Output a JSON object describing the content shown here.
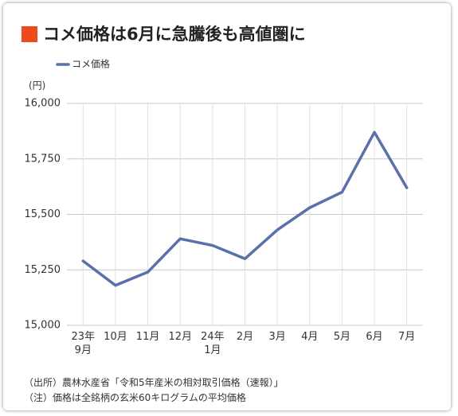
{
  "chart_data": {
    "type": "line",
    "title": "コメ価格は6月に急騰後も高値圏に",
    "y_unit": "(円)",
    "categories": [
      "23年\n9月",
      "10月",
      "11月",
      "12月",
      "24年\n1月",
      "2月",
      "3月",
      "4月",
      "5月",
      "6月",
      "7月"
    ],
    "series": [
      {
        "name": "コメ価格",
        "color": "#5a6fae",
        "values": [
          15290,
          15180,
          15240,
          15390,
          15360,
          15300,
          15430,
          15530,
          15600,
          15870,
          15620
        ]
      }
    ],
    "ylim": [
      15000,
      16000
    ],
    "yticks": [
      {
        "value": 15000,
        "label": "15,000"
      },
      {
        "value": 15250,
        "label": "15,250"
      },
      {
        "value": 15500,
        "label": "15,500"
      },
      {
        "value": 15750,
        "label": "15,750"
      },
      {
        "value": 16000,
        "label": "16,000"
      }
    ],
    "grid": true,
    "notes": [
      "（出所）農林水産省「令和5年産米の相対取引価格（速報）」",
      "（注）価格は全銘柄の玄米60キログラムの平均価格"
    ]
  }
}
